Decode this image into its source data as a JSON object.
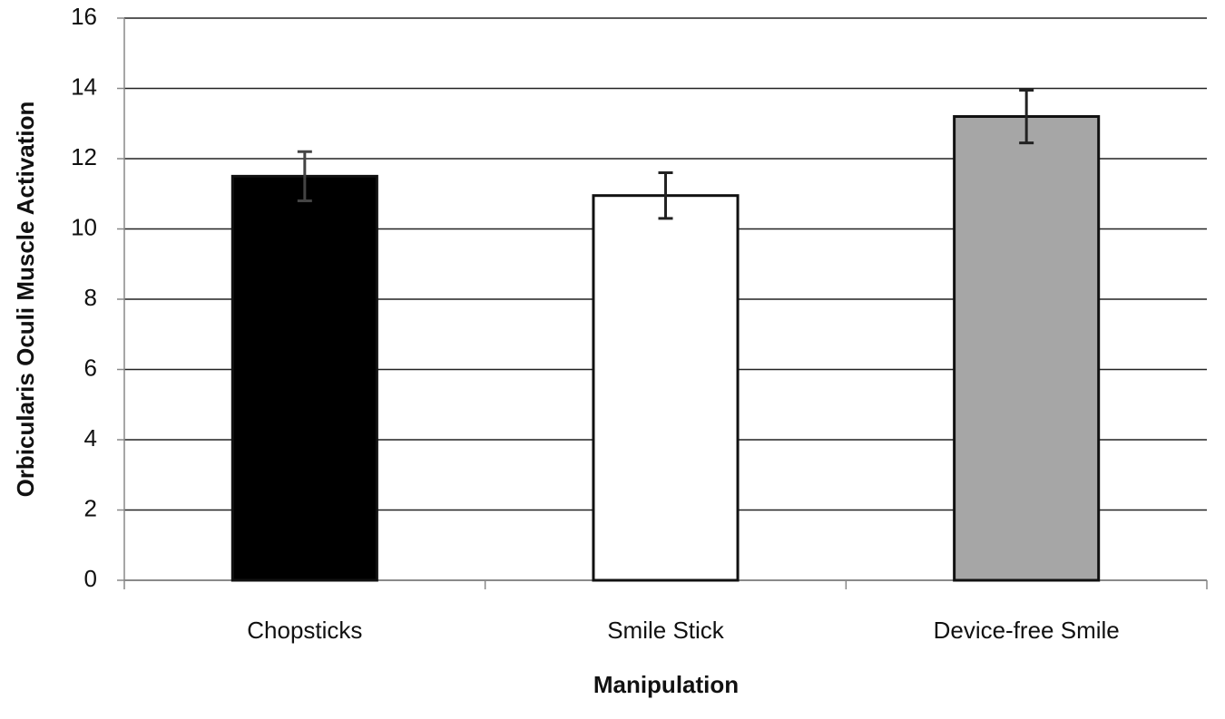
{
  "chart_data": {
    "type": "bar",
    "categories": [
      "Chopsticks",
      "Smile Stick",
      "Device-free Smile"
    ],
    "values": [
      11.5,
      10.95,
      13.2
    ],
    "errors": [
      0.7,
      0.65,
      0.75
    ],
    "colors": [
      "#000000",
      "#ffffff",
      "#a6a6a6"
    ],
    "x_label": "Manipulation",
    "y_label": "Orbicularis Oculi Muscle Activation",
    "ylim": [
      0,
      16
    ],
    "yticks": [
      0,
      2,
      4,
      6,
      8,
      10,
      12,
      14,
      16
    ],
    "grid": true
  }
}
